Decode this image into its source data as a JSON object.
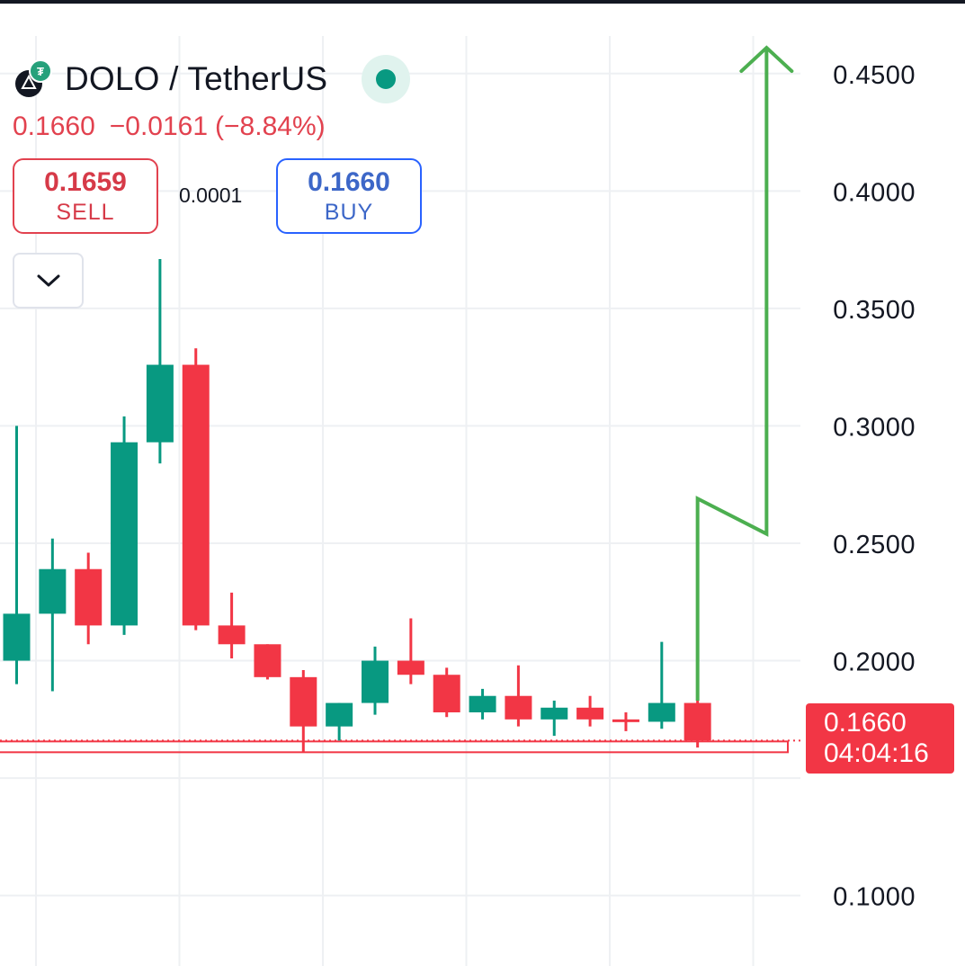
{
  "header": {
    "symbol_title": "DOLO / TetherUS",
    "last_price": "0.1660",
    "change": "−0.0161",
    "change_percent": "(−8.84%)",
    "status": "live"
  },
  "trade": {
    "sell_price": "0.1659",
    "sell_label": "SELL",
    "spread": "0.0001",
    "buy_price": "0.1660",
    "buy_label": "BUY"
  },
  "price_tag": {
    "price": "0.1660",
    "countdown": "04:04:16"
  },
  "colors": {
    "up": "#089981",
    "down": "#f23645",
    "arrow": "#4caf50",
    "text": "#131722",
    "grid": "#eef0f3"
  },
  "chart_data": {
    "type": "candlestick",
    "y_axis_ticks": [
      "0.4500",
      "0.4000",
      "0.3500",
      "0.3000",
      "0.2500",
      "0.2000",
      "0.1000"
    ],
    "ylim": [
      0.07,
      0.466
    ],
    "grid": true,
    "current_price_line": 0.166,
    "candles": [
      {
        "open": 0.2,
        "high": 0.3,
        "low": 0.19,
        "close": 0.22
      },
      {
        "open": 0.22,
        "high": 0.252,
        "low": 0.187,
        "close": 0.239
      },
      {
        "open": 0.239,
        "high": 0.246,
        "low": 0.207,
        "close": 0.215
      },
      {
        "open": 0.215,
        "high": 0.304,
        "low": 0.211,
        "close": 0.293
      },
      {
        "open": 0.293,
        "high": 0.371,
        "low": 0.284,
        "close": 0.326
      },
      {
        "open": 0.326,
        "high": 0.333,
        "low": 0.213,
        "close": 0.215
      },
      {
        "open": 0.215,
        "high": 0.229,
        "low": 0.201,
        "close": 0.207
      },
      {
        "open": 0.207,
        "high": 0.207,
        "low": 0.192,
        "close": 0.193
      },
      {
        "open": 0.193,
        "high": 0.196,
        "low": 0.161,
        "close": 0.172
      },
      {
        "open": 0.172,
        "high": 0.182,
        "low": 0.166,
        "close": 0.182
      },
      {
        "open": 0.182,
        "high": 0.206,
        "low": 0.177,
        "close": 0.2
      },
      {
        "open": 0.2,
        "high": 0.218,
        "low": 0.19,
        "close": 0.194
      },
      {
        "open": 0.194,
        "high": 0.197,
        "low": 0.176,
        "close": 0.178
      },
      {
        "open": 0.178,
        "high": 0.188,
        "low": 0.175,
        "close": 0.185
      },
      {
        "open": 0.185,
        "high": 0.198,
        "low": 0.172,
        "close": 0.175
      },
      {
        "open": 0.175,
        "high": 0.183,
        "low": 0.168,
        "close": 0.18
      },
      {
        "open": 0.18,
        "high": 0.185,
        "low": 0.172,
        "close": 0.175
      },
      {
        "open": 0.175,
        "high": 0.178,
        "low": 0.17,
        "close": 0.174
      },
      {
        "open": 0.174,
        "high": 0.208,
        "low": 0.171,
        "close": 0.182
      },
      {
        "open": 0.182,
        "high": 0.193,
        "low": 0.163,
        "close": 0.166
      }
    ],
    "annotation_arrow": {
      "points": [
        {
          "candle": 19,
          "price": 0.183
        },
        {
          "candle": 19,
          "price": 0.269
        },
        {
          "candle": 21,
          "price": 0.254
        },
        {
          "candle": 21,
          "price": 0.461
        }
      ]
    }
  }
}
